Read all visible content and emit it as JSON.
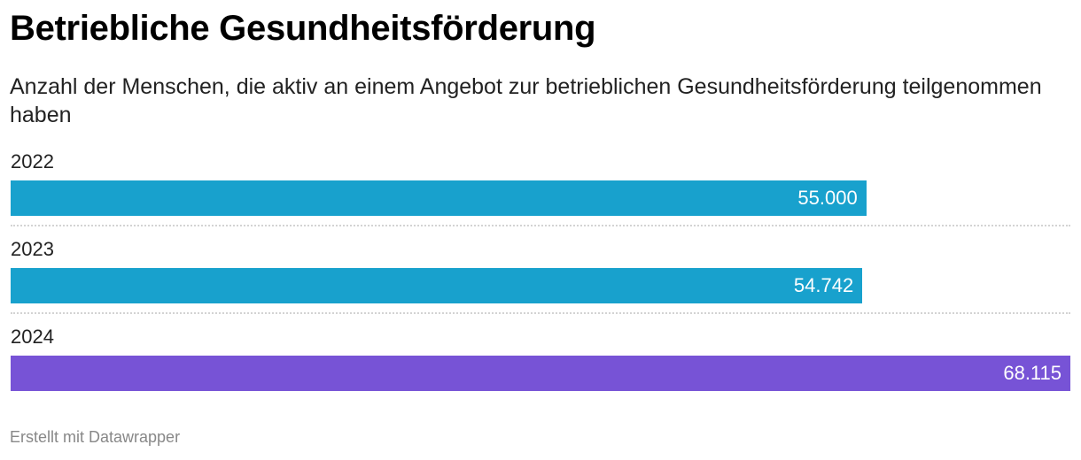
{
  "title": "Betriebliche Gesundheitsförderung",
  "subtitle": "Anzahl der Menschen, die aktiv an einem Angebot zur betrieblichen Gesundheitsförderung teilgenommen haben",
  "footer": "Erstellt mit Datawrapper",
  "chart_data": {
    "type": "bar",
    "orientation": "horizontal",
    "title": "Betriebliche Gesundheitsförderung",
    "categories": [
      "2022",
      "2023",
      "2024"
    ],
    "values": [
      55000,
      54742,
      68115
    ],
    "value_labels": [
      "55.000",
      "54.742",
      "68.115"
    ],
    "colors": [
      "#18a1cd",
      "#18a1cd",
      "#7753d6"
    ],
    "xlim": [
      0,
      68115
    ],
    "grid": false
  }
}
